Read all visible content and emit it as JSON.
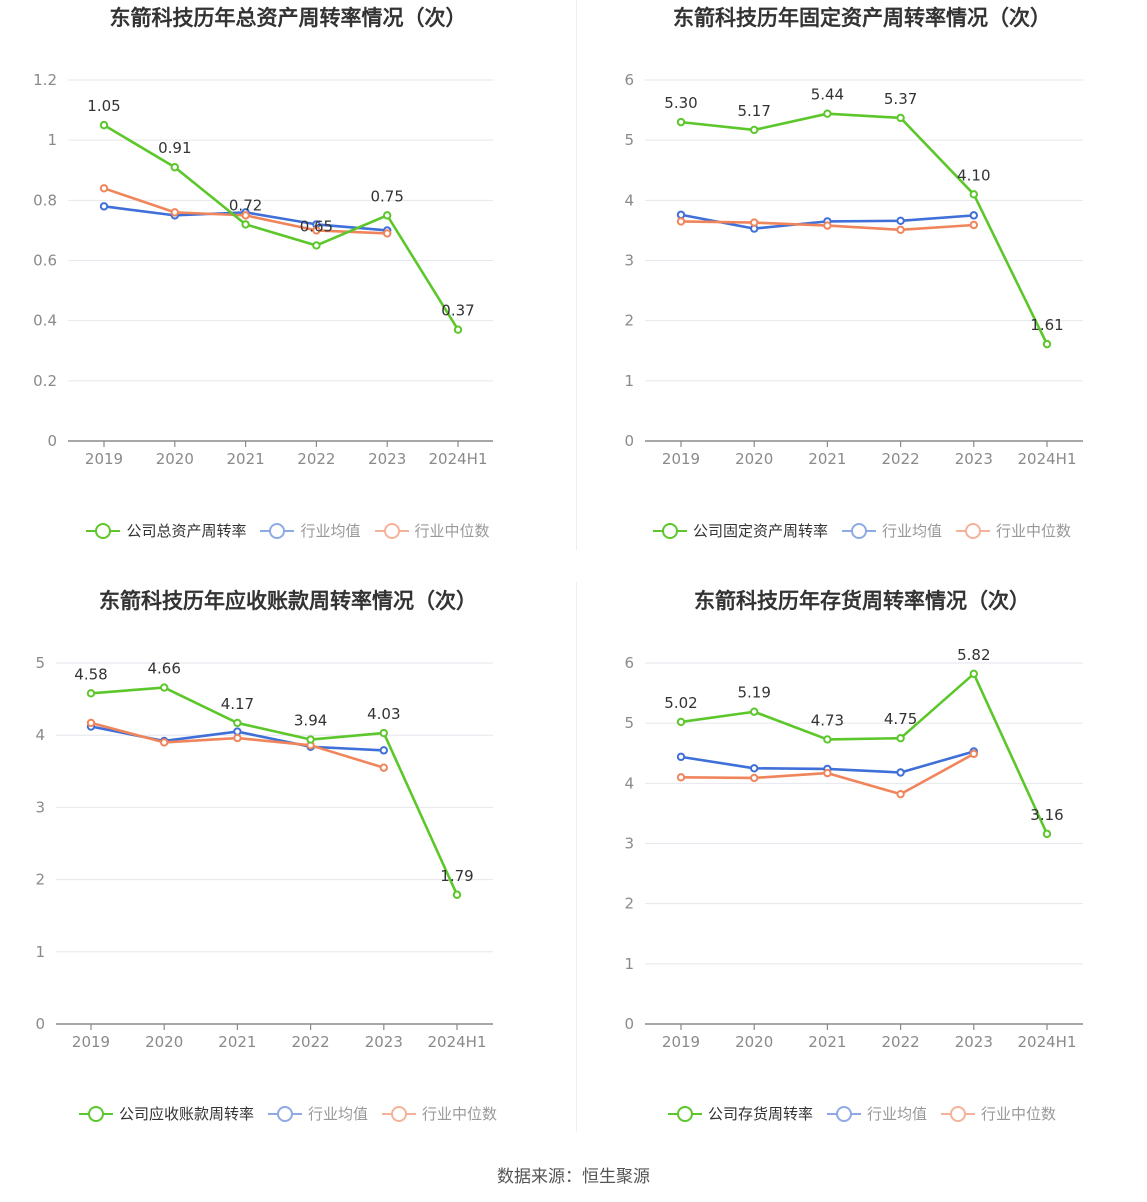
{
  "colors": {
    "company": "#5cc72b",
    "industry_avg": "#3f6fd8",
    "industry_median": "#f0855c",
    "legend_avg": "#8fa9e6",
    "legend_median": "#f4b29a",
    "grid": "#e6e6ee",
    "axis": "#8a8a8a"
  },
  "footer": "数据来源：恒生聚源",
  "chart_data": [
    {
      "type": "line",
      "title": "东箭科技历年总资产周转率情况（次）",
      "categories": [
        "2019",
        "2020",
        "2021",
        "2022",
        "2023",
        "2024H1"
      ],
      "ylim": [
        0,
        1.2
      ],
      "yticks": [
        "0",
        "0.2",
        "0.4",
        "0.6",
        "0.8",
        "1",
        "1.2"
      ],
      "legend": [
        "公司总资产周转率",
        "行业均值",
        "行业中位数"
      ],
      "series": [
        {
          "name": "公司总资产周转率",
          "values": [
            1.05,
            0.91,
            0.72,
            0.65,
            0.75,
            0.37
          ],
          "labels": [
            "1.05",
            "0.91",
            "0.72",
            "0.65",
            "0.75",
            "0.37"
          ]
        },
        {
          "name": "行业均值",
          "values": [
            0.78,
            0.75,
            0.76,
            0.72,
            0.7,
            null
          ]
        },
        {
          "name": "行业中位数",
          "values": [
            0.84,
            0.76,
            0.75,
            0.7,
            0.69,
            null
          ]
        }
      ]
    },
    {
      "type": "line",
      "title": "东箭科技历年固定资产周转率情况（次）",
      "categories": [
        "2019",
        "2020",
        "2021",
        "2022",
        "2023",
        "2024H1"
      ],
      "ylim": [
        0,
        6
      ],
      "yticks": [
        "0",
        "1",
        "2",
        "3",
        "4",
        "5",
        "6"
      ],
      "legend": [
        "公司固定资产周转率",
        "行业均值",
        "行业中位数"
      ],
      "series": [
        {
          "name": "公司固定资产周转率",
          "values": [
            5.3,
            5.17,
            5.44,
            5.37,
            4.1,
            1.61
          ],
          "labels": [
            "5.30",
            "5.17",
            "5.44",
            "5.37",
            "4.10",
            "1.61"
          ]
        },
        {
          "name": "行业均值",
          "values": [
            3.76,
            3.53,
            3.65,
            3.66,
            3.75,
            null
          ]
        },
        {
          "name": "行业中位数",
          "values": [
            3.65,
            3.63,
            3.58,
            3.51,
            3.59,
            null
          ]
        }
      ]
    },
    {
      "type": "line",
      "title": "东箭科技历年应收账款周转率情况（次）",
      "categories": [
        "2019",
        "2020",
        "2021",
        "2022",
        "2023",
        "2024H1"
      ],
      "ylim": [
        0,
        5
      ],
      "yticks": [
        "0",
        "1",
        "2",
        "3",
        "4",
        "5"
      ],
      "legend": [
        "公司应收账款周转率",
        "行业均值",
        "行业中位数"
      ],
      "series": [
        {
          "name": "公司应收账款周转率",
          "values": [
            4.58,
            4.66,
            4.17,
            3.94,
            4.03,
            1.79
          ],
          "labels": [
            "4.58",
            "4.66",
            "4.17",
            "3.94",
            "4.03",
            "1.79"
          ]
        },
        {
          "name": "行业均值",
          "values": [
            4.12,
            3.92,
            4.05,
            3.84,
            3.79,
            null
          ]
        },
        {
          "name": "行业中位数",
          "values": [
            4.17,
            3.9,
            3.96,
            3.86,
            3.55,
            null
          ]
        }
      ]
    },
    {
      "type": "line",
      "title": "东箭科技历年存货周转率情况（次）",
      "categories": [
        "2019",
        "2020",
        "2021",
        "2022",
        "2023",
        "2024H1"
      ],
      "ylim": [
        0,
        6
      ],
      "yticks": [
        "0",
        "1",
        "2",
        "3",
        "4",
        "5",
        "6"
      ],
      "legend": [
        "公司存货周转率",
        "行业均值",
        "行业中位数"
      ],
      "series": [
        {
          "name": "公司存货周转率",
          "values": [
            5.02,
            5.19,
            4.73,
            4.75,
            5.82,
            3.16
          ],
          "labels": [
            "5.02",
            "5.19",
            "4.73",
            "4.75",
            "5.82",
            "3.16"
          ]
        },
        {
          "name": "行业均值",
          "values": [
            4.44,
            4.25,
            4.24,
            4.18,
            4.53,
            null
          ]
        },
        {
          "name": "行业中位数",
          "values": [
            4.1,
            4.09,
            4.17,
            3.82,
            4.49,
            null
          ]
        }
      ]
    }
  ]
}
